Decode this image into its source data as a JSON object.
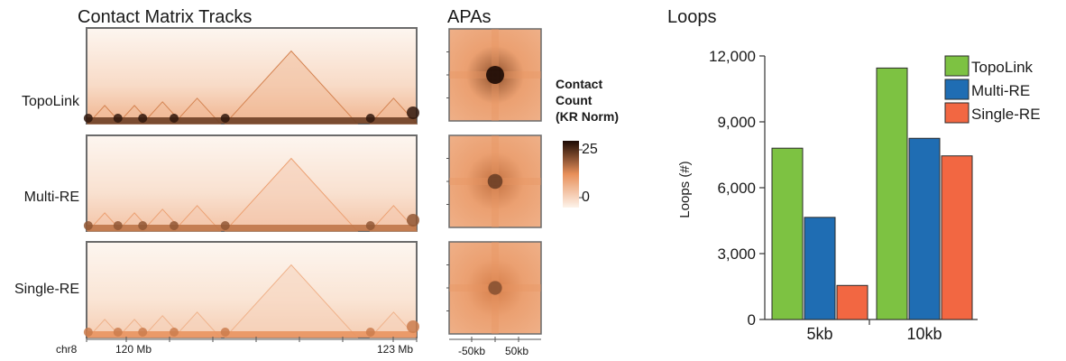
{
  "panels": {
    "tracks_title": "Contact Matrix Tracks",
    "apa_title": "APAs",
    "loops_title": "Loops"
  },
  "tracks": [
    {
      "label": "TopoLink",
      "intensity": 1.0
    },
    {
      "label": "Multi-RE",
      "intensity": 0.75
    },
    {
      "label": "Single-RE",
      "intensity": 0.6
    }
  ],
  "genome_axis": {
    "chrom": "chr8",
    "start_label": "120 Mb",
    "end_label": "123 Mb"
  },
  "apa": {
    "peak_levels": [
      25,
      14,
      10
    ],
    "x_tick_left": "-50kb",
    "x_tick_right": "50kb"
  },
  "colorbar": {
    "title_lines": [
      "Contact",
      "Count",
      "(KR Norm)"
    ],
    "max_label": "25",
    "min_label": "0",
    "max": 25,
    "min": 0,
    "color_low": "#fdf3ea",
    "color_mid": "#e8905a",
    "color_high": "#1c0a04"
  },
  "chart_data": {
    "type": "bar",
    "categories": [
      "5kb",
      "10kb"
    ],
    "series": [
      {
        "name": "TopoLink",
        "color": "#7dc242",
        "values": [
          7800,
          11450
        ]
      },
      {
        "name": "Multi-RE",
        "color": "#1f6db3",
        "values": [
          4650,
          8250
        ]
      },
      {
        "name": "Single-RE",
        "color": "#f26742",
        "values": [
          1550,
          7450
        ]
      }
    ],
    "ylabel": "Loops (#)",
    "ylim": [
      0,
      12000
    ],
    "yticks": [
      0,
      3000,
      6000,
      9000,
      12000
    ],
    "ytick_labels": [
      "0",
      "3,000",
      "6,000",
      "9,000",
      "12,000"
    ],
    "legend_position": "top-right"
  }
}
